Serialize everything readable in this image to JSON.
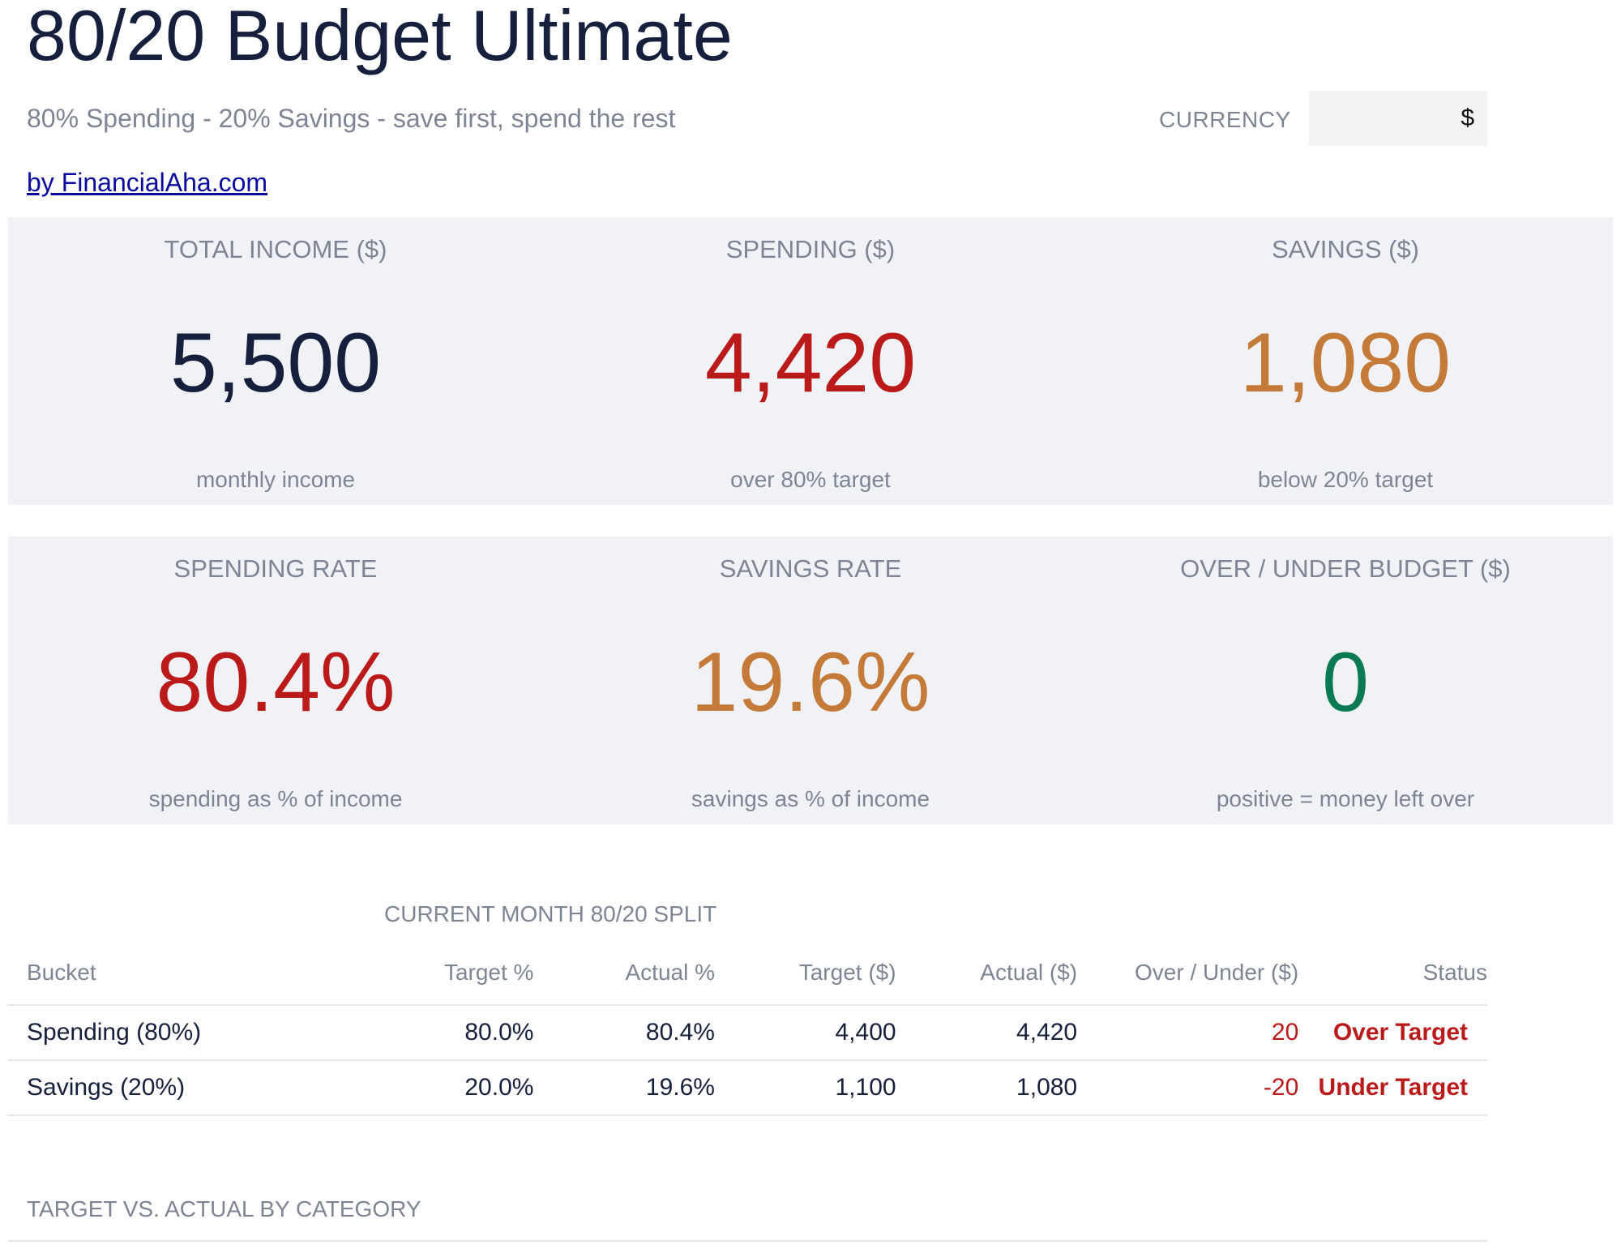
{
  "header": {
    "title": "80/20 Budget Ultimate",
    "subtitle": "80% Spending - 20% Savings - save first, spend the rest",
    "byline": "by FinancialAha.com",
    "currency_label": "CURRENCY",
    "currency_value": "$"
  },
  "kpis_row1": [
    {
      "label": "TOTAL INCOME ($)",
      "value": "5,500",
      "note": "monthly income",
      "color": "#16203c"
    },
    {
      "label": "SPENDING ($)",
      "value": "4,420",
      "note": "over 80% target",
      "color": "#bb1a1a"
    },
    {
      "label": "SAVINGS ($)",
      "value": "1,080",
      "note": "below 20% target",
      "color": "#c47a38"
    }
  ],
  "kpis_row2": [
    {
      "label": "SPENDING RATE",
      "value": "80.4%",
      "note": "spending as % of income",
      "color": "#bb1a1a"
    },
    {
      "label": "SAVINGS RATE",
      "value": "19.6%",
      "note": "savings as % of income",
      "color": "#c47a38"
    },
    {
      "label": "OVER / UNDER BUDGET ($)",
      "value": "0",
      "note": "positive = money left over",
      "color": "#0a7a52"
    }
  ],
  "split": {
    "title": "CURRENT MONTH 80/20 SPLIT",
    "columns": [
      "Bucket",
      "Target %",
      "Actual %",
      "Target ($)",
      "Actual ($)",
      "Over / Under ($)",
      "Status"
    ],
    "rows": [
      {
        "bucket": "Spending (80%)",
        "target_pct": "80.0%",
        "actual_pct": "80.4%",
        "target_amt": "4,400",
        "actual_amt": "4,420",
        "over_under": "20",
        "status": "Over Target"
      },
      {
        "bucket": "Savings (20%)",
        "target_pct": "20.0%",
        "actual_pct": "19.6%",
        "target_amt": "1,100",
        "actual_amt": "1,080",
        "over_under": "-20",
        "status": "Under Target"
      }
    ]
  },
  "category": {
    "title": "TARGET VS. ACTUAL BY CATEGORY"
  }
}
